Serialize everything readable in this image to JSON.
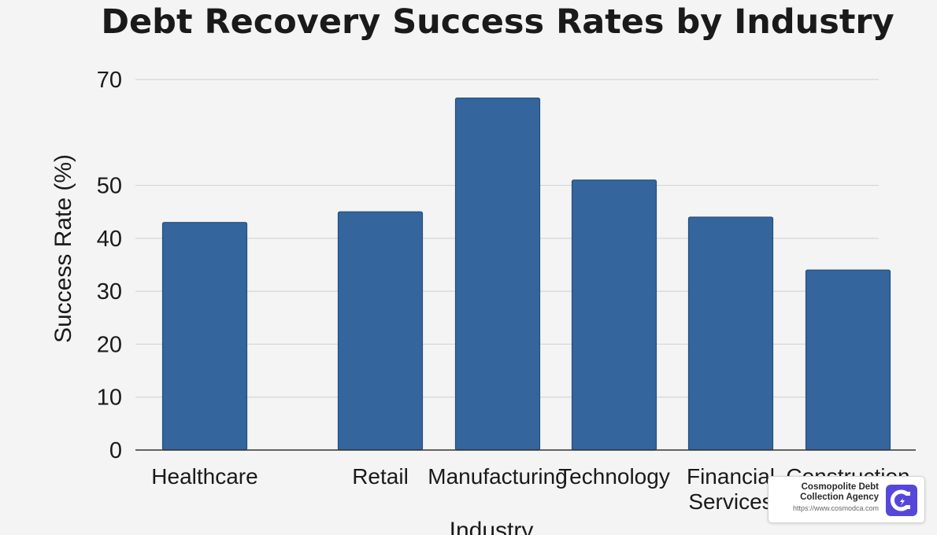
{
  "chart_data": {
    "type": "bar",
    "title": "Debt Recovery Success Rates by Industry",
    "xlabel": "Industry",
    "ylabel": "Success Rate (%)",
    "ylim": [
      0,
      70
    ],
    "yticks": [
      0,
      10,
      20,
      30,
      40,
      50,
      70
    ],
    "grid": true,
    "legend": "none",
    "categories": [
      "Healthcare",
      "Retail",
      "Manufacturing",
      "Technology",
      "Financial Services",
      "Construction"
    ],
    "values": [
      43,
      45,
      66.5,
      51,
      44,
      34
    ],
    "bar_color": "#34659d"
  },
  "badge": {
    "name_line1": "Cosmopolite Debt",
    "name_line2": "Collection Agency",
    "url": "https://www.cosmodca.com",
    "logo_icon": "magnet-icon",
    "logo_color": "#5548d9"
  }
}
